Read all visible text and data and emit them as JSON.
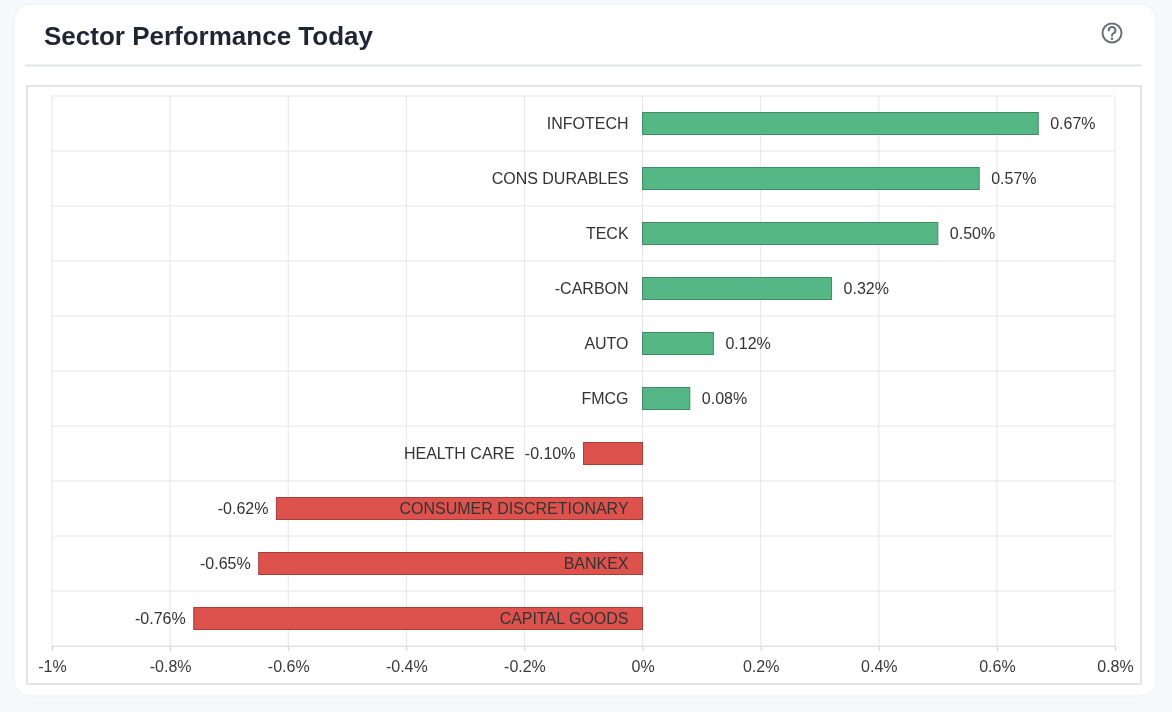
{
  "chart_data": {
    "type": "bar",
    "orientation": "horizontal",
    "title": "Sector Performance Today",
    "categories": [
      "INFOTECH",
      "CONS DURABLES",
      "TECK",
      "-CARBON",
      "AUTO",
      "FMCG",
      "HEALTH CARE",
      "CONSUMER DISCRETIONARY",
      "BANKEX",
      "CAPITAL GOODS"
    ],
    "values": [
      0.67,
      0.57,
      0.5,
      0.32,
      0.12,
      0.08,
      -0.1,
      -0.62,
      -0.65,
      -0.76
    ],
    "colors": [
      "#55b786",
      "#55b786",
      "#55b786",
      "#55b786",
      "#55b786",
      "#55b786",
      "#dd524d",
      "#dd524d",
      "#dd524d",
      "#dd524d"
    ],
    "value_labels": [
      "0.67%",
      "0.57%",
      "0.50%",
      "0.32%",
      "0.12%",
      "0.08%",
      "-0.10%",
      "-0.62%",
      "-0.65%",
      "-0.76%"
    ],
    "xlim": [
      -1,
      0.8
    ],
    "xticks": [
      {
        "value": -1,
        "label": "-1%"
      },
      {
        "value": -0.8,
        "label": "-0.8%"
      },
      {
        "value": -0.6,
        "label": "-0.6%"
      },
      {
        "value": -0.4,
        "label": "-0.4%"
      },
      {
        "value": -0.2,
        "label": "-0.2%"
      },
      {
        "value": 0,
        "label": "0%"
      },
      {
        "value": 0.2,
        "label": "0.2%"
      },
      {
        "value": 0.4,
        "label": "0.4%"
      },
      {
        "value": 0.6,
        "label": "0.6%"
      },
      {
        "value": 0.8,
        "label": "0.8%"
      }
    ],
    "grid": true
  }
}
